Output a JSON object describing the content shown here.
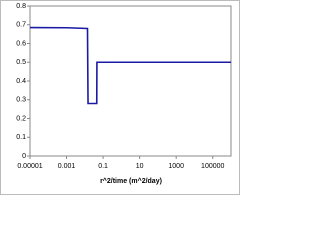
{
  "chart_data": {
    "type": "line",
    "xlabel": "r^2/time (m^2/day)",
    "xscale": "log",
    "xlim": [
      1e-05,
      1000000
    ],
    "xticks": [
      1e-05,
      0.001,
      0.1,
      10,
      1000,
      100000
    ],
    "ylim": [
      0,
      0.8
    ],
    "yticks": [
      0,
      0.1,
      0.2,
      0.3,
      0.4,
      0.5,
      0.6,
      0.7,
      0.8
    ],
    "grid": false,
    "series": [
      {
        "name": null,
        "color": "#1a1aa6",
        "x": [
          1e-05,
          0.001,
          0.014,
          0.015,
          0.045,
          0.046,
          1000000
        ],
        "values": [
          0.685,
          0.684,
          0.68,
          0.28,
          0.28,
          0.5,
          0.5
        ]
      }
    ]
  }
}
